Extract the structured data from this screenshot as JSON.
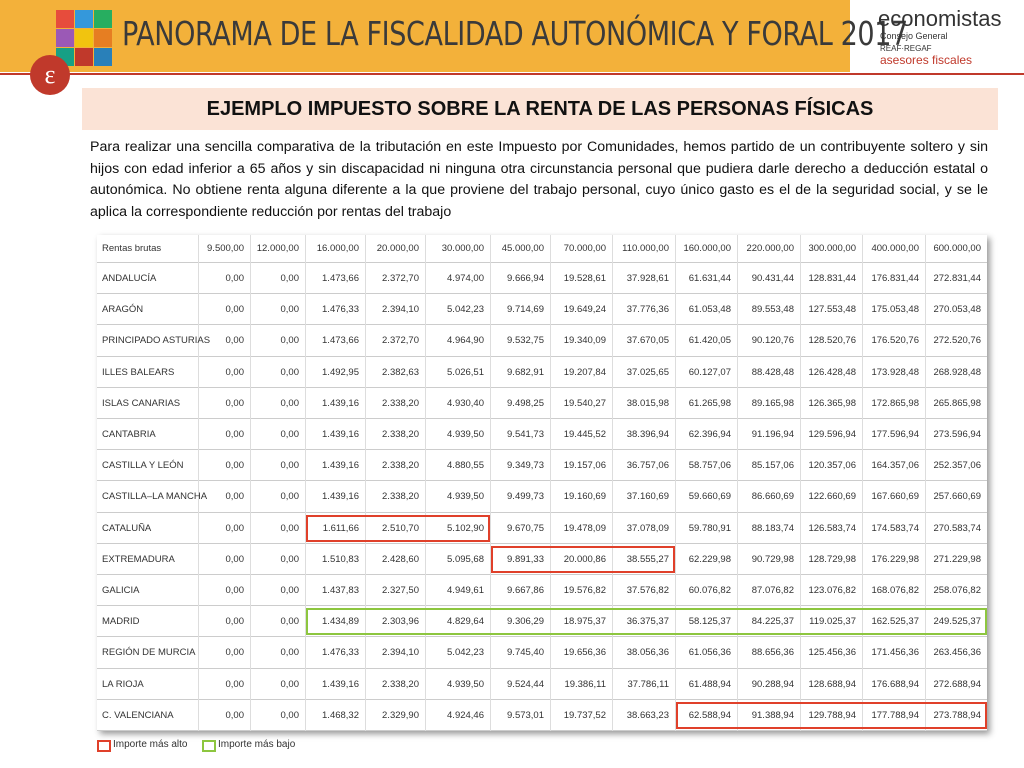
{
  "header": {
    "title": "PANORAMA DE LA FISCALIDAD AUTONÓMICA Y FORAL 2017",
    "brand": "economistas",
    "brand_sub": "Consejo General",
    "org": "REAF·REGAF",
    "org_sub": "asesores fiscales"
  },
  "section_title": "EJEMPLO IMPUESTO SOBRE LA RENTA DE LAS PERSONAS FÍSICAS",
  "intro": "Para realizar una sencilla comparativa de la tributación en este Impuesto por Comunidades, hemos partido de un contribuyente soltero y sin hijos con edad inferior a 65 años y sin discapacidad ni ninguna otra circunstancia personal que pudiera darle derecho a deducción estatal o autonómica. No obtiene renta alguna diferente a la que proviene del trabajo personal, cuyo único gasto es el de la seguridad social, y se le aplica la correspondiente reducción por rentas del trabajo",
  "table": {
    "header": [
      "Rentas brutas",
      "9.500,00",
      "12.000,00",
      "16.000,00",
      "20.000,00",
      "30.000,00",
      "45.000,00",
      "70.000,00",
      "110.000,00",
      "160.000,00",
      "220.000,00",
      "300.000,00",
      "400.000,00",
      "600.000,00"
    ],
    "rows": [
      [
        "ANDALUCÍA",
        "0,00",
        "0,00",
        "1.473,66",
        "2.372,70",
        "4.974,00",
        "9.666,94",
        "19.528,61",
        "37.928,61",
        "61.631,44",
        "90.431,44",
        "128.831,44",
        "176.831,44",
        "272.831,44"
      ],
      [
        "ARAGÓN",
        "0,00",
        "0,00",
        "1.476,33",
        "2.394,10",
        "5.042,23",
        "9.714,69",
        "19.649,24",
        "37.776,36",
        "61.053,48",
        "89.553,48",
        "127.553,48",
        "175.053,48",
        "270.053,48"
      ],
      [
        "PRINCIPADO ASTURIAS",
        "0,00",
        "0,00",
        "1.473,66",
        "2.372,70",
        "4.964,90",
        "9.532,75",
        "19.340,09",
        "37.670,05",
        "61.420,05",
        "90.120,76",
        "128.520,76",
        "176.520,76",
        "272.520,76"
      ],
      [
        "ILLES BALEARS",
        "0,00",
        "0,00",
        "1.492,95",
        "2.382,63",
        "5.026,51",
        "9.682,91",
        "19.207,84",
        "37.025,65",
        "60.127,07",
        "88.428,48",
        "126.428,48",
        "173.928,48",
        "268.928,48"
      ],
      [
        "ISLAS CANARIAS",
        "0,00",
        "0,00",
        "1.439,16",
        "2.338,20",
        "4.930,40",
        "9.498,25",
        "19.540,27",
        "38.015,98",
        "61.265,98",
        "89.165,98",
        "126.365,98",
        "172.865,98",
        "265.865,98"
      ],
      [
        "CANTABRIA",
        "0,00",
        "0,00",
        "1.439,16",
        "2.338,20",
        "4.939,50",
        "9.541,73",
        "19.445,52",
        "38.396,94",
        "62.396,94",
        "91.196,94",
        "129.596,94",
        "177.596,94",
        "273.596,94"
      ],
      [
        "CASTILLA Y LEÓN",
        "0,00",
        "0,00",
        "1.439,16",
        "2.338,20",
        "4.880,55",
        "9.349,73",
        "19.157,06",
        "36.757,06",
        "58.757,06",
        "85.157,06",
        "120.357,06",
        "164.357,06",
        "252.357,06"
      ],
      [
        "CASTILLA–LA MANCHA",
        "0,00",
        "0,00",
        "1.439,16",
        "2.338,20",
        "4.939,50",
        "9.499,73",
        "19.160,69",
        "37.160,69",
        "59.660,69",
        "86.660,69",
        "122.660,69",
        "167.660,69",
        "257.660,69"
      ],
      [
        "CATALUÑA",
        "0,00",
        "0,00",
        "1.611,66",
        "2.510,70",
        "5.102,90",
        "9.670,75",
        "19.478,09",
        "37.078,09",
        "59.780,91",
        "88.183,74",
        "126.583,74",
        "174.583,74",
        "270.583,74"
      ],
      [
        "EXTREMADURA",
        "0,00",
        "0,00",
        "1.510,83",
        "2.428,60",
        "5.095,68",
        "9.891,33",
        "20.000,86",
        "38.555,27",
        "62.229,98",
        "90.729,98",
        "128.729,98",
        "176.229,98",
        "271.229,98"
      ],
      [
        "GALICIA",
        "0,00",
        "0,00",
        "1.437,83",
        "2.327,50",
        "4.949,61",
        "9.667,86",
        "19.576,82",
        "37.576,82",
        "60.076,82",
        "87.076,82",
        "123.076,82",
        "168.076,82",
        "258.076,82"
      ],
      [
        "MADRID",
        "0,00",
        "0,00",
        "1.434,89",
        "2.303,96",
        "4.829,64",
        "9.306,29",
        "18.975,37",
        "36.375,37",
        "58.125,37",
        "84.225,37",
        "119.025,37",
        "162.525,37",
        "249.525,37"
      ],
      [
        "REGIÓN DE MURCIA",
        "0,00",
        "0,00",
        "1.476,33",
        "2.394,10",
        "5.042,23",
        "9.745,40",
        "19.656,36",
        "38.056,36",
        "61.056,36",
        "88.656,36",
        "125.456,36",
        "171.456,36",
        "263.456,36"
      ],
      [
        "LA RIOJA",
        "0,00",
        "0,00",
        "1.439,16",
        "2.338,20",
        "4.939,50",
        "9.524,44",
        "19.386,11",
        "37.786,11",
        "61.488,94",
        "90.288,94",
        "128.688,94",
        "176.688,94",
        "272.688,94"
      ],
      [
        "C. VALENCIANA",
        "0,00",
        "0,00",
        "1.468,32",
        "2.329,90",
        "4.924,46",
        "9.573,01",
        "19.737,52",
        "38.663,23",
        "62.588,94",
        "91.388,94",
        "129.788,94",
        "177.788,94",
        "273.788,94"
      ]
    ]
  },
  "legend": {
    "high": "Importe más alto",
    "low": "Importe más bajo"
  }
}
